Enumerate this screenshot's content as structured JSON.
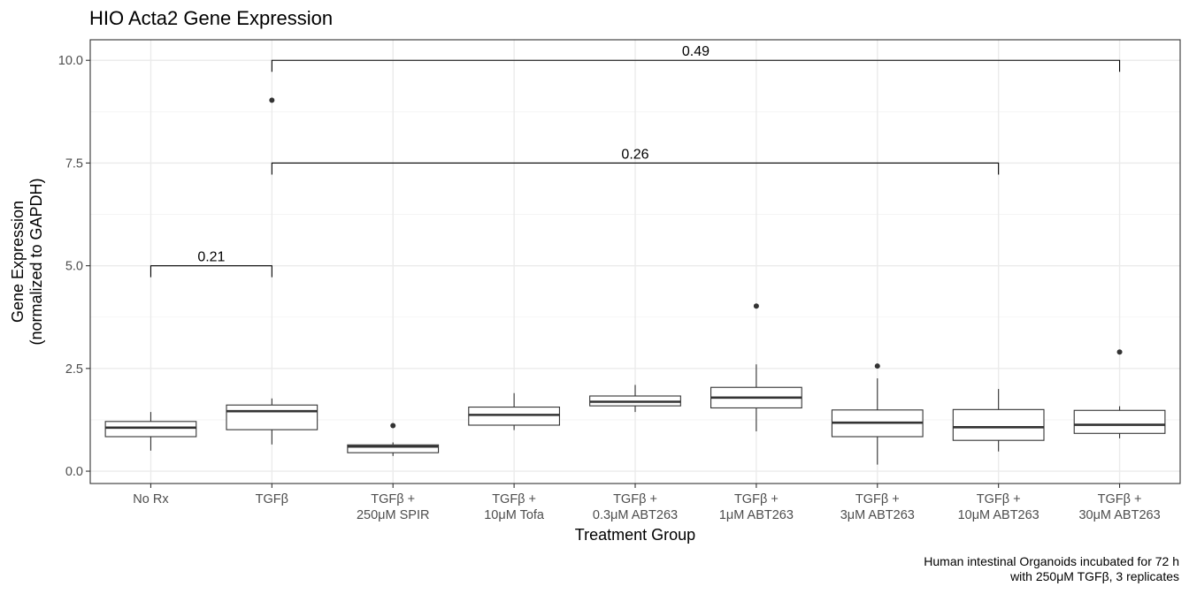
{
  "chart_data": {
    "type": "box",
    "title": "HIO Acta2 Gene Expression",
    "xlabel": "Treatment Group",
    "ylabel": [
      "Gene Expression",
      "(normalized to GAPDH)"
    ],
    "caption": [
      "Human intestinal Organoids incubated for 72 h",
      "with 250μM TGFβ, 3 replicates"
    ],
    "ylim": [
      -0.3,
      10.5
    ],
    "yticks": [
      0.0,
      2.5,
      5.0,
      7.5,
      10.0
    ],
    "ytick_labels": [
      "0.0",
      "2.5",
      "5.0",
      "7.5",
      "10.0"
    ],
    "grid": true,
    "categories": [
      [
        "No Rx"
      ],
      [
        "TGFβ"
      ],
      [
        "TGFβ +",
        "250μM SPIR"
      ],
      [
        "TGFβ +",
        "10μM Tofa"
      ],
      [
        "TGFβ +",
        "0.3μM ABT263"
      ],
      [
        "TGFβ +",
        "1μM ABT263"
      ],
      [
        "TGFβ +",
        "3μM ABT263"
      ],
      [
        "TGFβ +",
        "10μM ABT263"
      ],
      [
        "TGFβ +",
        "30μM ABT263"
      ]
    ],
    "boxes": [
      {
        "q1": 0.84,
        "median": 1.06,
        "q3": 1.21,
        "whisker_low": 0.5,
        "whisker_high": 1.44,
        "outliers": []
      },
      {
        "q1": 1.01,
        "median": 1.46,
        "q3": 1.61,
        "whisker_low": 0.65,
        "whisker_high": 1.77,
        "outliers": [
          9.03
        ]
      },
      {
        "q1": 0.45,
        "median": 0.6,
        "q3": 0.64,
        "whisker_low": 0.37,
        "whisker_high": 0.7,
        "outliers": [
          1.11
        ]
      },
      {
        "q1": 1.12,
        "median": 1.37,
        "q3": 1.56,
        "whisker_low": 1.0,
        "whisker_high": 1.9,
        "outliers": []
      },
      {
        "q1": 1.59,
        "median": 1.69,
        "q3": 1.83,
        "whisker_low": 1.44,
        "whisker_high": 2.1,
        "outliers": []
      },
      {
        "q1": 1.54,
        "median": 1.79,
        "q3": 2.04,
        "whisker_low": 0.97,
        "whisker_high": 2.6,
        "outliers": [
          4.02
        ]
      },
      {
        "q1": 0.84,
        "median": 1.18,
        "q3": 1.49,
        "whisker_low": 0.16,
        "whisker_high": 2.26,
        "outliers": [
          2.56
        ]
      },
      {
        "q1": 0.75,
        "median": 1.07,
        "q3": 1.5,
        "whisker_low": 0.48,
        "whisker_high": 2.0,
        "outliers": []
      },
      {
        "q1": 0.92,
        "median": 1.13,
        "q3": 1.48,
        "whisker_low": 0.8,
        "whisker_high": 1.58,
        "outliers": [
          2.9
        ]
      }
    ],
    "comparisons": [
      {
        "from": 0,
        "to": 1,
        "y": 5.0,
        "label": "0.21"
      },
      {
        "from": 1,
        "to": 7,
        "y": 7.5,
        "label": "0.26"
      },
      {
        "from": 1,
        "to": 8,
        "y": 10.0,
        "label": "0.49"
      }
    ]
  }
}
